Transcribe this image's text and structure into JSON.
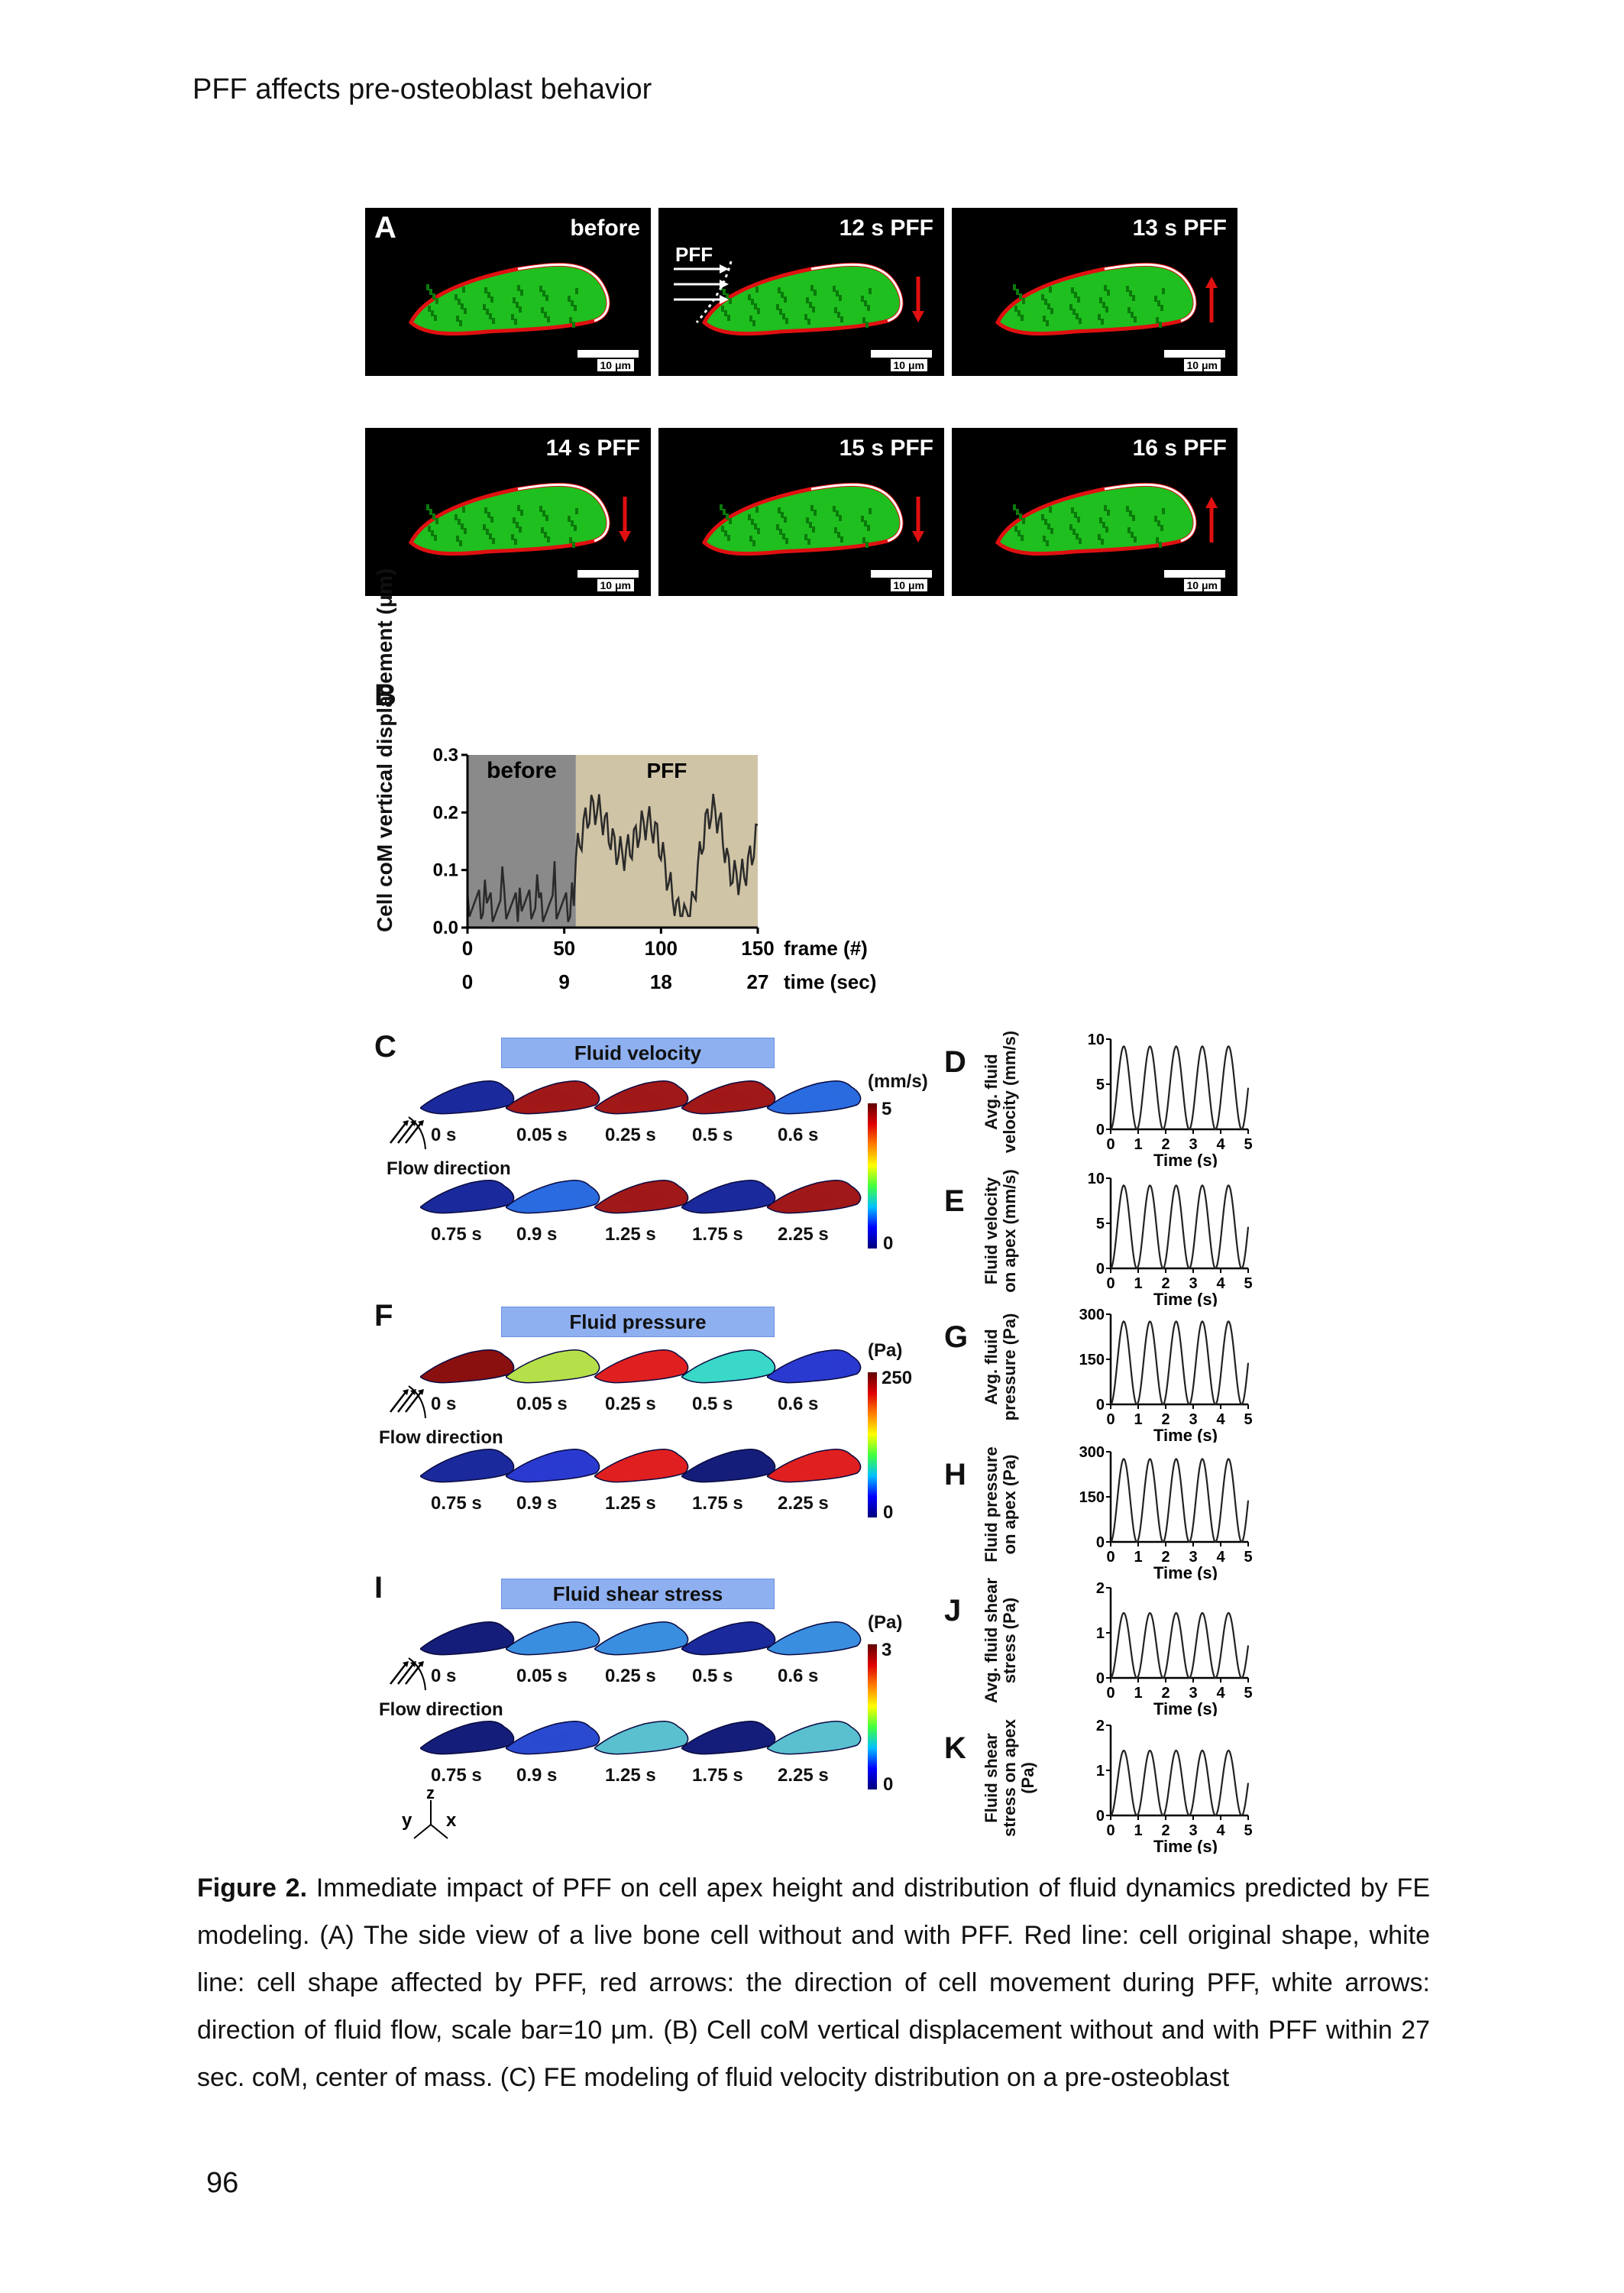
{
  "header": "PFF affects pre-osteoblast behavior",
  "page_number": "96",
  "panel_A": {
    "letter": "A",
    "tiles": [
      "before",
      "12 s PFF",
      "13 s PFF",
      "14 s PFF",
      "15 s PFF",
      "16 s PFF"
    ],
    "scale": "10 μm",
    "flow_label": "PFF",
    "arrow_directions": [
      "none",
      "down",
      "up",
      "down",
      "down",
      "up"
    ]
  },
  "panel_B": {
    "letter": "B",
    "ylabel": "Cell coM vertical displacement (μm)",
    "band_before": "before",
    "band_pff": "PFF",
    "x_frame_label": "frame (#)",
    "x_time_label": "time (sec)",
    "frame_ticks": [
      "0",
      "50",
      "100",
      "150"
    ],
    "time_ticks": [
      "0",
      "9",
      "18",
      "27"
    ],
    "y_ticks": [
      "0.0",
      "0.1",
      "0.2",
      "0.3"
    ]
  },
  "sim_panels": [
    {
      "letter": "C",
      "band": "Fluid velocity",
      "unit": "(mm/s)",
      "max": "5",
      "min": "0",
      "row1_times": [
        "0 s",
        "0.05 s",
        "0.25 s",
        "0.5 s",
        "0.6 s"
      ],
      "row2_times": [
        "0.75 s",
        "0.9 s",
        "1.25 s",
        "1.75 s",
        "2.25 s"
      ],
      "flow_direction": "Flow direction",
      "row1_colors": [
        "#1a2a9c",
        "#a01818",
        "#a01818",
        "#a01818",
        "#2a6be0"
      ],
      "row2_colors": [
        "#1a2a9c",
        "#2a6be0",
        "#a01818",
        "#1a2a9c",
        "#a01818"
      ]
    },
    {
      "letter": "F",
      "band": "Fluid pressure",
      "unit": "(Pa)",
      "max": "250",
      "min": "0",
      "row1_times": [
        "0 s",
        "0.05 s",
        "0.25 s",
        "0.5 s",
        "0.6 s"
      ],
      "row2_times": [
        "0.75 s",
        "0.9 s",
        "1.25 s",
        "1.75 s",
        "2.25 s"
      ],
      "flow_direction": "Flow direction",
      "row1_colors": [
        "#8a1010",
        "#b6e04a",
        "#e02020",
        "#3ad8c8",
        "#2a3ad0"
      ],
      "row2_colors": [
        "#1a2a9c",
        "#2a3ad0",
        "#e02020",
        "#141e7a",
        "#e02020"
      ]
    },
    {
      "letter": "I",
      "band": "Fluid shear stress",
      "unit": "(Pa)",
      "max": "3",
      "min": "0",
      "row1_times": [
        "0 s",
        "0.05 s",
        "0.25 s",
        "0.5 s",
        "0.6 s"
      ],
      "row2_times": [
        "0.75 s",
        "0.9 s",
        "1.25 s",
        "1.75 s",
        "2.25 s"
      ],
      "flow_direction": "Flow direction",
      "row1_colors": [
        "#141e7a",
        "#3a8ee0",
        "#3a8ee0",
        "#1a2a9c",
        "#3a8ee0"
      ],
      "row2_colors": [
        "#141e7a",
        "#2a4ad0",
        "#5ac0d0",
        "#141e7a",
        "#5ac0d0"
      ]
    }
  ],
  "axis_triad": {
    "y": "y",
    "z": "z",
    "x": "x"
  },
  "line_panels": [
    {
      "letter": "D",
      "ylabel": "Avg. fluid velocity (mm/s)",
      "yticks": [
        "0",
        "5",
        "10"
      ],
      "xlabel": "Time (s)",
      "xticks": [
        "0",
        "1",
        "2",
        "3",
        "4",
        "5"
      ]
    },
    {
      "letter": "E",
      "ylabel": "Fluid velocity on apex (mm/s)",
      "yticks": [
        "0",
        "5",
        "10"
      ],
      "xlabel": "Time (s)",
      "xticks": [
        "0",
        "1",
        "2",
        "3",
        "4",
        "5"
      ]
    },
    {
      "letter": "G",
      "ylabel": "Avg. fluid pressure (Pa)",
      "yticks": [
        "0",
        "150",
        "300"
      ],
      "xlabel": "Time (s)",
      "xticks": [
        "0",
        "1",
        "2",
        "3",
        "4",
        "5"
      ]
    },
    {
      "letter": "H",
      "ylabel": "Fluid pressure on apex (Pa)",
      "yticks": [
        "0",
        "150",
        "300"
      ],
      "xlabel": "Time (s)",
      "xticks": [
        "0",
        "1",
        "2",
        "3",
        "4",
        "5"
      ]
    },
    {
      "letter": "J",
      "ylabel": "Avg. fluid shear stress (Pa)",
      "yticks": [
        "0",
        "1",
        "2"
      ],
      "xlabel": "Time (s)",
      "xticks": [
        "0",
        "1",
        "2",
        "3",
        "4",
        "5"
      ]
    },
    {
      "letter": "K",
      "ylabel": "Fluid shear stress on apex (Pa)",
      "yticks": [
        "0",
        "1",
        "2"
      ],
      "xlabel": "Time (s)",
      "xticks": [
        "0",
        "1",
        "2",
        "3",
        "4",
        "5"
      ]
    }
  ],
  "caption": {
    "label": "Figure 2.",
    "text": " Immediate impact of PFF on cell apex height and distribution of fluid dynamics predicted by FE modeling. (A) The side view of a live bone cell without and with PFF. Red line: cell original shape, white line: cell shape affected by PFF, red arrows: the direction of cell movement during PFF, white arrows: direction of fluid flow, scale bar=10 μm. (B) Cell coM vertical displacement without and with PFF within 27 sec. coM, center of mass. (C) FE modeling of fluid velocity distribution on a pre-osteoblast"
  }
}
